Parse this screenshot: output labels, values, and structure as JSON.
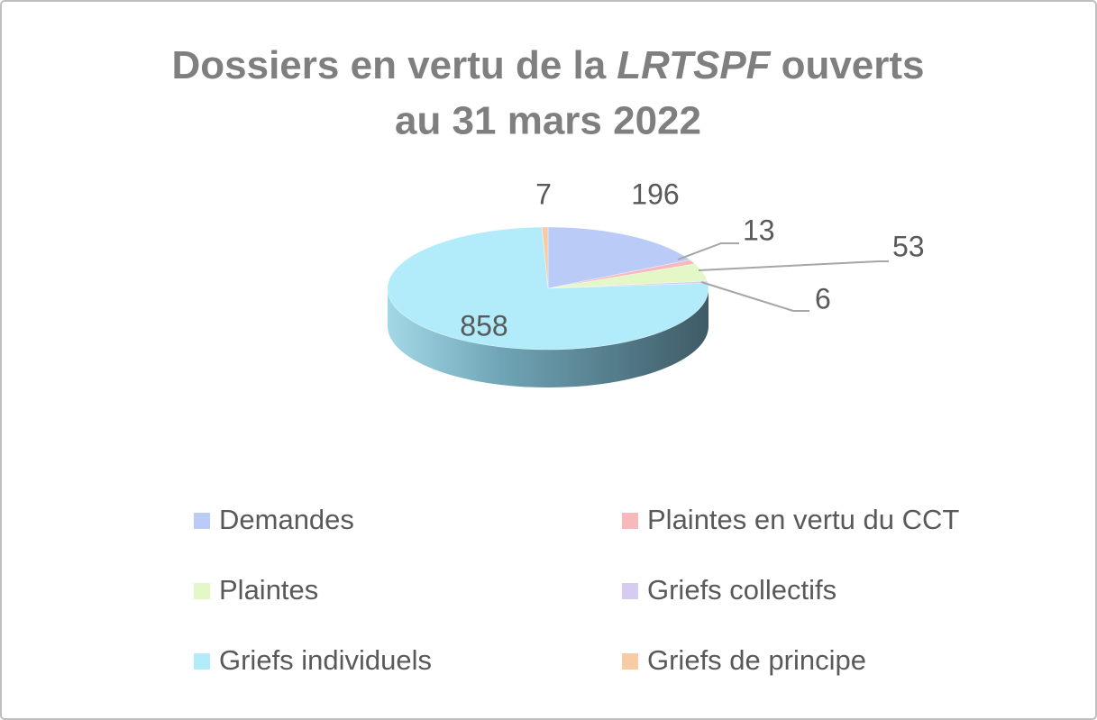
{
  "chart_data": {
    "type": "pie",
    "title": [
      "Dossiers en vertu de la",
      "LRTSPF",
      "ouverts",
      "au 31 mars 2022"
    ],
    "categories": [
      "Demandes",
      "Plaintes en vertu du CCT",
      "Plaintes",
      "Griefs collectifs",
      "Griefs individuels",
      "Griefs de principe"
    ],
    "values": [
      196,
      13,
      53,
      6,
      858,
      7
    ],
    "colors": [
      "#b9cbf6",
      "#f7b9bb",
      "#e3f8c6",
      "#d8cbf1",
      "#b2ecfa",
      "#f9cba4"
    ],
    "legend": "bottom"
  }
}
